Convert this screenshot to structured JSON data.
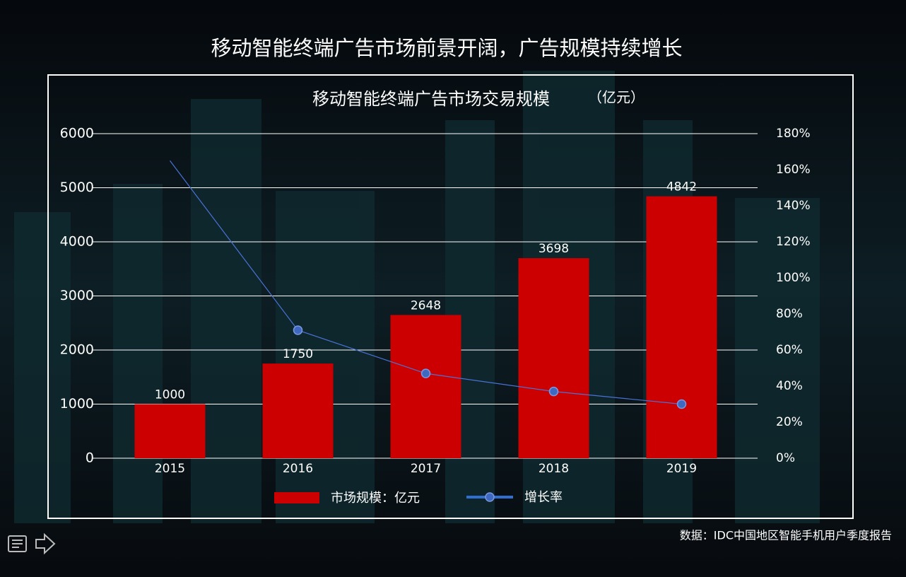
{
  "headline": "移动智能终端广告市场前景开阔，广告规模持续增长",
  "source": "数据：IDC中国地区智能手机用户季度报告",
  "chart_data": {
    "type": "bar-line",
    "title": "移动智能终端广告市场交易规模",
    "unit": "（亿元）",
    "categories": [
      "2015",
      "2016",
      "2017",
      "2018",
      "2019"
    ],
    "series": [
      {
        "name": "市场规模：亿元",
        "type": "bar",
        "color": "#cc0000",
        "values": [
          1000,
          1750,
          2648,
          3698,
          4842
        ]
      },
      {
        "name": "增长率",
        "type": "line",
        "axis": "y2",
        "color": "#4a72d6",
        "values": [
          165,
          71,
          47,
          37,
          30
        ]
      }
    ],
    "ylim": [
      0,
      6000
    ],
    "yticks": [
      0,
      1000,
      2000,
      3000,
      4000,
      5000,
      6000
    ],
    "y2lim": [
      0,
      180
    ],
    "y2ticks": [
      {
        "value": 0,
        "label": "0%"
      },
      {
        "value": 20,
        "label": "20%"
      },
      {
        "value": 40,
        "label": "40%"
      },
      {
        "value": 60,
        "label": "60%"
      },
      {
        "value": 80,
        "label": "80%"
      },
      {
        "value": 100,
        "label": "100%"
      },
      {
        "value": 120,
        "label": "120%"
      },
      {
        "value": 140,
        "label": "140%"
      },
      {
        "value": 160,
        "label": "160%"
      },
      {
        "value": 180,
        "label": "180%"
      }
    ],
    "grid": true,
    "legend": "bottom"
  }
}
